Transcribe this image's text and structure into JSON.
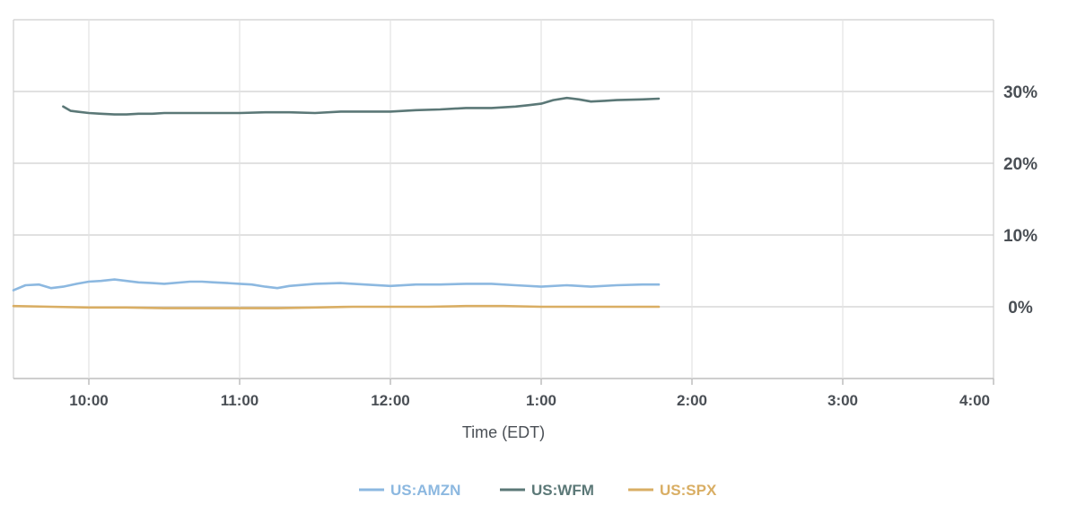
{
  "chart_data": {
    "type": "line",
    "xlabel": "Time (EDT)",
    "ylabel": "",
    "x_ticks": [
      "10:00",
      "11:00",
      "12:00",
      "1:00",
      "2:00",
      "3:00",
      "4:00"
    ],
    "y_ticks": [
      "0%",
      "10%",
      "20%",
      "30%"
    ],
    "xlim": [
      9.5,
      16.0
    ],
    "ylim": [
      -10,
      40
    ],
    "grid": true,
    "legend_position": "bottom",
    "series": [
      {
        "name": "US:AMZN",
        "color": "#8cb8e0",
        "x": [
          9.5,
          9.58,
          9.67,
          9.75,
          9.83,
          9.92,
          10.0,
          10.08,
          10.17,
          10.25,
          10.33,
          10.42,
          10.5,
          10.67,
          10.75,
          10.83,
          10.92,
          11.0,
          11.08,
          11.17,
          11.25,
          11.33,
          11.5,
          11.67,
          11.83,
          12.0,
          12.17,
          12.33,
          12.5,
          12.67,
          12.83,
          13.0,
          13.17,
          13.33,
          13.5,
          13.67,
          13.78
        ],
        "y": [
          2.3,
          3.0,
          3.1,
          2.6,
          2.8,
          3.2,
          3.5,
          3.6,
          3.8,
          3.6,
          3.4,
          3.3,
          3.2,
          3.5,
          3.5,
          3.4,
          3.3,
          3.2,
          3.1,
          2.8,
          2.6,
          2.9,
          3.2,
          3.3,
          3.1,
          2.9,
          3.1,
          3.1,
          3.2,
          3.2,
          3.0,
          2.8,
          3.0,
          2.8,
          3.0,
          3.1,
          3.1
        ]
      },
      {
        "name": "US:WFM",
        "color": "#5b7877",
        "x": [
          9.83,
          9.88,
          9.92,
          10.0,
          10.08,
          10.17,
          10.25,
          10.33,
          10.42,
          10.5,
          10.67,
          10.83,
          11.0,
          11.17,
          11.33,
          11.5,
          11.67,
          11.83,
          12.0,
          12.17,
          12.33,
          12.5,
          12.67,
          12.83,
          12.92,
          13.0,
          13.08,
          13.17,
          13.25,
          13.33,
          13.42,
          13.5,
          13.67,
          13.78
        ],
        "y": [
          27.9,
          27.3,
          27.2,
          27.0,
          26.9,
          26.8,
          26.8,
          26.9,
          26.9,
          27.0,
          27.0,
          27.0,
          27.0,
          27.1,
          27.1,
          27.0,
          27.2,
          27.2,
          27.2,
          27.4,
          27.5,
          27.7,
          27.7,
          27.9,
          28.1,
          28.3,
          28.8,
          29.1,
          28.9,
          28.6,
          28.7,
          28.8,
          28.9,
          29.0
        ]
      },
      {
        "name": "US:SPX",
        "color": "#d9ae64",
        "x": [
          9.5,
          9.75,
          10.0,
          10.25,
          10.5,
          10.75,
          11.0,
          11.25,
          11.5,
          11.75,
          12.0,
          12.25,
          12.5,
          12.75,
          13.0,
          13.25,
          13.5,
          13.78
        ],
        "y": [
          0.1,
          0.0,
          -0.1,
          -0.1,
          -0.2,
          -0.2,
          -0.2,
          -0.2,
          -0.1,
          0.0,
          0.0,
          0.0,
          0.1,
          0.1,
          0.0,
          0.0,
          0.0,
          0.0
        ]
      }
    ]
  }
}
